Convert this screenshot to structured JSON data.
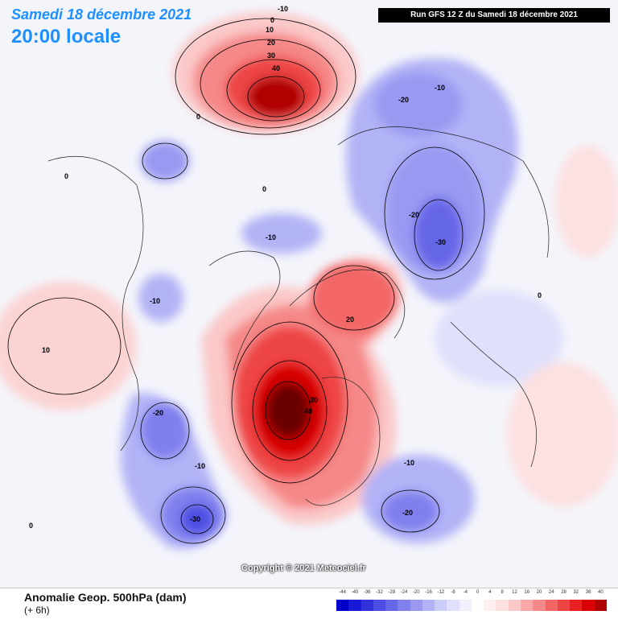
{
  "header": {
    "date": "Samedi 18 décembre 2021",
    "time": "20:00 locale",
    "run": "Run GFS 12 Z du Samedi 18 décembre 2021"
  },
  "copyright": "Copyright © 2021 Meteociel.fr",
  "footer": {
    "title": "Anomalie Geop. 500hPa (dam)",
    "subtitle": "(+ 6h)"
  },
  "legend": {
    "ticks": [
      "-44",
      "-40",
      "-36",
      "-32",
      "-28",
      "-24",
      "-20",
      "-16",
      "-12",
      "-8",
      "-4",
      "0",
      "4",
      "8",
      "12",
      "16",
      "20",
      "24",
      "28",
      "32",
      "36",
      "40"
    ],
    "colors": [
      "#0000cc",
      "#1a1ad6",
      "#3333dd",
      "#4d4de3",
      "#6666e8",
      "#7f7fee",
      "#9999f2",
      "#b2b2f6",
      "#ccccfa",
      "#e0e0fc",
      "#f0f0fe",
      "#ffffff",
      "#fff0f0",
      "#fde0e0",
      "#fbc8c8",
      "#f8a8a8",
      "#f58888",
      "#f26666",
      "#ee4444",
      "#e82222",
      "#d80000",
      "#b00000"
    ]
  },
  "contour_labels": [
    "-10",
    "0",
    "10",
    "20",
    "30",
    "40",
    "-20",
    "-30",
    "20",
    "30",
    "40",
    "-10",
    "-20",
    "-30",
    "10",
    "-10",
    "-20",
    "-10",
    "-20",
    "-10",
    "-10",
    "0",
    "0",
    "0",
    "0",
    "0"
  ]
}
